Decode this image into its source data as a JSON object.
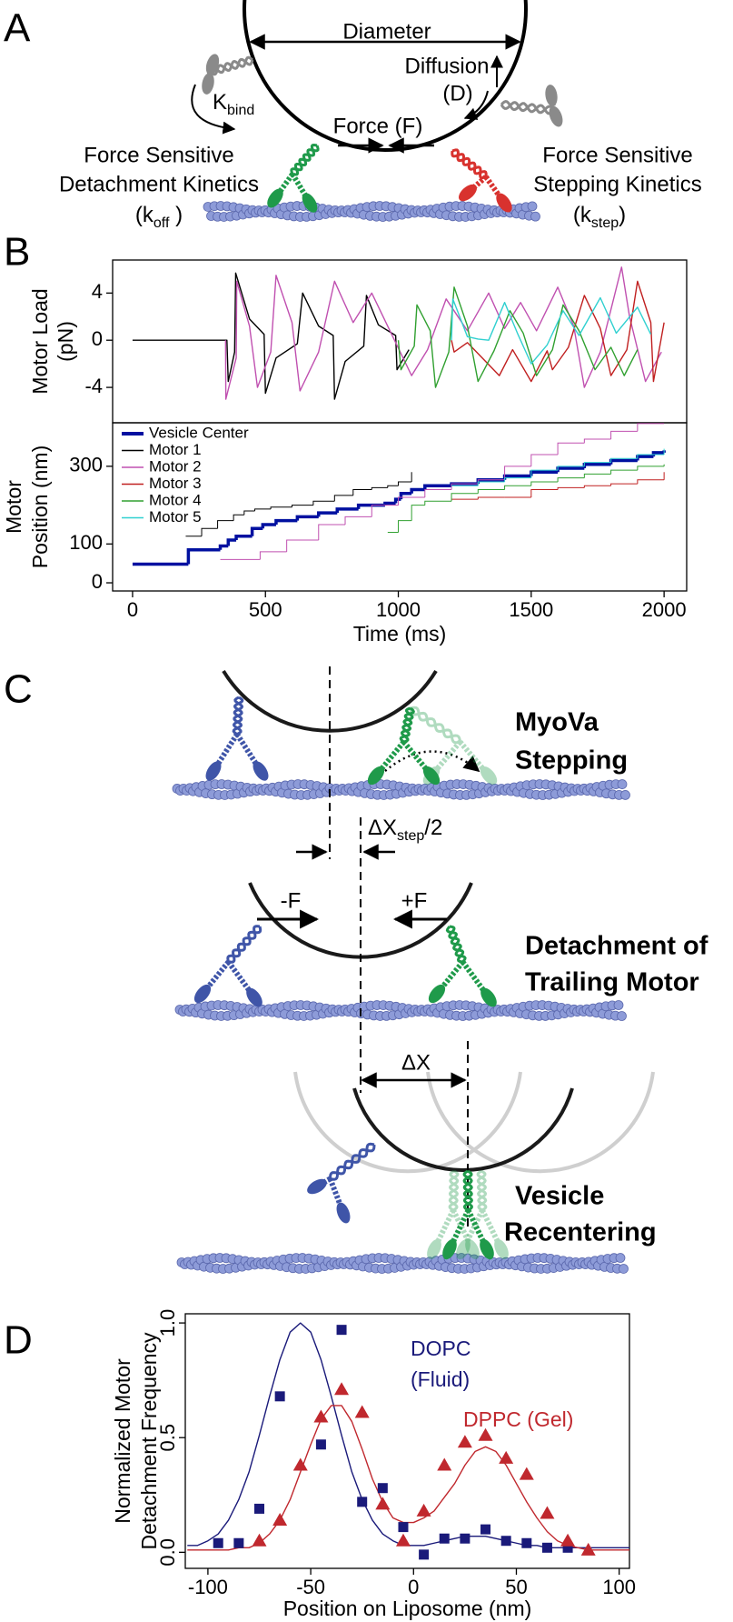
{
  "panel_labels": [
    "A",
    "B",
    "C",
    "D"
  ],
  "diagram_a": {
    "diameter": "Diameter",
    "diffusion": [
      "Diffusion",
      "(D)"
    ],
    "k_bind": {
      "main": "K",
      "sub": "bind"
    },
    "force": "Force (F)",
    "detachment": [
      "Force Sensitive",
      "Detachment Kinetics"
    ],
    "k_off": {
      "pre": "(k",
      "sub": "off",
      "post": " )"
    },
    "stepping": [
      "Force Sensitive",
      "Stepping Kinetics"
    ],
    "k_step": {
      "pre": "(k",
      "sub": "step",
      "post": ")"
    }
  },
  "diagram_c": {
    "stage1": [
      "MyoVa",
      "Stepping"
    ],
    "dx_step": {
      "pre": "ΔX",
      "sub": "step",
      "post": "/2"
    },
    "minus_f": "-F",
    "plus_f": "+F",
    "stage2": [
      "Detachment of",
      "Trailing Motor"
    ],
    "dx": "ΔX",
    "stage3": [
      "Vesicle",
      "Recentering"
    ]
  },
  "chart_data": [
    {
      "type": "line",
      "ylabel": [
        "Motor Load",
        "(pN)"
      ],
      "xlim": [
        -75,
        2085
      ],
      "ylim": [
        -7,
        6.8
      ],
      "yticks": [
        -4,
        0,
        4
      ],
      "series": [
        {
          "color": "#000000",
          "x": [
            0,
            355,
            360,
            384,
            388,
            440,
            495,
            500,
            540,
            620,
            640,
            700,
            755,
            760,
            800,
            870,
            880,
            925,
            990,
            995,
            1040
          ],
          "values": [
            0,
            0,
            -3.5,
            -1,
            5.7,
            1.8,
            0.5,
            -4.5,
            -1.5,
            -0.3,
            4,
            1.2,
            0.4,
            -5,
            -1.8,
            -0.5,
            3.8,
            1.3,
            0.4,
            -2.5,
            -0.8
          ]
        },
        {
          "color": "#c050b0",
          "x": [
            350,
            351,
            390,
            392,
            440,
            470,
            520,
            540,
            600,
            630,
            700,
            760,
            830,
            900,
            960,
            1050,
            1110,
            1180,
            1260,
            1340,
            1400,
            1460,
            1520,
            1600,
            1660,
            1700,
            1760,
            1840,
            1870,
            1930,
            1990
          ],
          "values": [
            0,
            -5,
            -1.5,
            5,
            1.2,
            -4,
            -1,
            5.5,
            1.5,
            -4.3,
            -1,
            5,
            1.5,
            4,
            1.2,
            -3,
            -0.8,
            3.5,
            0.8,
            4,
            1,
            3.2,
            0.8,
            4.5,
            1.2,
            -4,
            -1,
            6.2,
            2,
            -3.5,
            -1
          ]
        },
        {
          "color": "#c02020",
          "x": [
            1200,
            1210,
            1260,
            1380,
            1430,
            1500,
            1560,
            1580,
            1640,
            1700,
            1760,
            1800,
            1860,
            1900,
            1950,
            1960,
            2000
          ],
          "values": [
            0,
            -1,
            -0.2,
            -3,
            -0.8,
            -3.5,
            -0.9,
            -2.5,
            -0.6,
            3.8,
            1,
            -3,
            -0.8,
            5,
            1.5,
            -3.5,
            1.5
          ]
        },
        {
          "color": "#30a030",
          "x": [
            1000,
            1010,
            1060,
            1070,
            1120,
            1140,
            1190,
            1210,
            1260,
            1300,
            1360,
            1420,
            1470,
            1520,
            1580,
            1620,
            1680,
            1740,
            1800,
            1850,
            1900
          ],
          "values": [
            0,
            -2.5,
            -0.5,
            3,
            0.8,
            -4,
            -1,
            4.5,
            1.2,
            -3.5,
            -0.9,
            2.5,
            0.6,
            -3,
            -0.8,
            3,
            0.8,
            -2.5,
            -0.6,
            -3,
            -0.8
          ]
        },
        {
          "color": "#30d0d0",
          "x": [
            1200,
            1205,
            1260,
            1300,
            1340,
            1400,
            1450,
            1500,
            1560,
            1620,
            1680,
            1760,
            1820,
            1900,
            1950
          ],
          "values": [
            0,
            3.5,
            0.3,
            0.1,
            0,
            3.2,
            0.5,
            -2,
            -0.4,
            2.5,
            0.4,
            3.6,
            0.6,
            2.8,
            0.5
          ]
        }
      ]
    },
    {
      "type": "line",
      "step": true,
      "xlabel": "Time (ms)",
      "ylabel": [
        "Motor",
        "Position (nm)"
      ],
      "xlim": [
        -75,
        2085
      ],
      "ylim": [
        -21,
        412
      ],
      "xticks": [
        0,
        500,
        1000,
        1500,
        2000
      ],
      "yticks": [
        0,
        100,
        300
      ],
      "legend": "upper left",
      "series": [
        {
          "name": "Vesicle Center",
          "color": "#0010a0",
          "line_width": 3.5,
          "x": [
            0,
            210,
            330,
            360,
            390,
            450,
            490,
            540,
            620,
            700,
            770,
            850,
            950,
            990,
            1010,
            1050,
            1100,
            1200,
            1300,
            1400,
            1500,
            1600,
            1700,
            1800,
            1900,
            1960,
            2000
          ],
          "values": [
            48,
            85,
            95,
            110,
            120,
            140,
            150,
            160,
            170,
            180,
            190,
            200,
            205,
            215,
            230,
            240,
            250,
            255,
            265,
            275,
            285,
            295,
            305,
            315,
            325,
            335,
            341
          ]
        },
        {
          "name": "Motor 1",
          "color": "#000000",
          "line_width": 1,
          "x": [
            200,
            260,
            320,
            380,
            420,
            460,
            520,
            600,
            680,
            760,
            830,
            900,
            960,
            1000,
            1050
          ],
          "values": [
            120,
            140,
            160,
            175,
            185,
            190,
            195,
            200,
            210,
            225,
            240,
            245,
            250,
            260,
            285
          ]
        },
        {
          "name": "Motor 2",
          "color": "#c050b0",
          "line_width": 1,
          "x": [
            330,
            480,
            580,
            700,
            800,
            900,
            1000,
            1100,
            1200,
            1300,
            1400,
            1500,
            1600,
            1700,
            1800,
            1900,
            2000
          ],
          "values": [
            60,
            80,
            110,
            150,
            170,
            200,
            220,
            240,
            255,
            265,
            300,
            330,
            360,
            370,
            390,
            410,
            410
          ]
        },
        {
          "name": "Motor 3",
          "color": "#c02020",
          "line_width": 1,
          "x": [
            1200,
            1300,
            1400,
            1500,
            1600,
            1700,
            1800,
            1900,
            2000
          ],
          "values": [
            215,
            220,
            220,
            240,
            245,
            250,
            255,
            265,
            285
          ]
        },
        {
          "name": "Motor 4",
          "color": "#30a030",
          "line_width": 1,
          "x": [
            960,
            1000,
            1050,
            1100,
            1200,
            1300,
            1400,
            1500,
            1600,
            1700,
            1800,
            1900,
            2000
          ],
          "values": [
            130,
            160,
            200,
            210,
            230,
            240,
            250,
            260,
            270,
            280,
            290,
            300,
            305
          ]
        },
        {
          "name": "Motor 5",
          "color": "#30d0d0",
          "line_width": 1,
          "x": [
            1200,
            1300,
            1400,
            1500,
            1600,
            1700,
            1800,
            1900,
            2000
          ],
          "values": [
            250,
            260,
            270,
            290,
            300,
            310,
            320,
            330,
            345
          ]
        }
      ]
    },
    {
      "type": "scatter",
      "xlabel": "Position on Liposome (nm)",
      "ylabel": [
        "Normalized Motor",
        "Detachment Frequency"
      ],
      "xlim": [
        -111,
        105
      ],
      "ylim": [
        -0.07,
        1.04
      ],
      "xticks": [
        -100,
        -50,
        0,
        50,
        100
      ],
      "yticks": [
        {
          "value": 0,
          "label": "0.0"
        },
        0.5,
        {
          "value": 1,
          "label": "1.0"
        }
      ],
      "annotations": [
        {
          "text": [
            "DOPC",
            "(Fluid)"
          ],
          "color": "#1a1a7a"
        },
        {
          "text": [
            "DPPC (Gel)"
          ],
          "color": "#c0282e"
        }
      ],
      "series": [
        {
          "style": "line",
          "color": "#1a1a7a",
          "x": [
            -110,
            -105,
            -100,
            -95,
            -90,
            -85,
            -80,
            -75,
            -70,
            -65,
            -60,
            -55,
            -50,
            -45,
            -40,
            -35,
            -30,
            -25,
            -20,
            -15,
            -10,
            -5,
            0,
            5,
            10,
            15,
            20,
            25,
            30,
            35,
            40,
            45,
            50,
            55,
            60,
            65,
            70,
            75,
            80,
            85,
            90,
            95,
            100,
            105
          ],
          "values": [
            0.03,
            0.03,
            0.05,
            0.08,
            0.14,
            0.23,
            0.35,
            0.51,
            0.68,
            0.84,
            0.96,
            1.0,
            0.96,
            0.84,
            0.68,
            0.51,
            0.35,
            0.23,
            0.14,
            0.08,
            0.05,
            0.03,
            0.03,
            0.03,
            0.04,
            0.05,
            0.06,
            0.07,
            0.07,
            0.07,
            0.06,
            0.05,
            0.04,
            0.03,
            0.03,
            0.02,
            0.02,
            0.02,
            0.02,
            0.02,
            0.02,
            0.02,
            0.02,
            0.02
          ]
        },
        {
          "style": "line",
          "color": "#c0282e",
          "x": [
            -110,
            -105,
            -100,
            -95,
            -90,
            -85,
            -80,
            -75,
            -70,
            -65,
            -60,
            -55,
            -50,
            -45,
            -40,
            -35,
            -30,
            -25,
            -20,
            -15,
            -10,
            -5,
            0,
            5,
            10,
            15,
            20,
            25,
            30,
            35,
            40,
            45,
            50,
            55,
            60,
            65,
            70,
            75,
            80,
            85,
            90,
            95,
            100,
            105
          ],
          "values": [
            0.01,
            0.01,
            0.01,
            0.01,
            0.01,
            0.02,
            0.02,
            0.04,
            0.08,
            0.14,
            0.23,
            0.35,
            0.47,
            0.58,
            0.64,
            0.64,
            0.57,
            0.45,
            0.32,
            0.22,
            0.15,
            0.13,
            0.13,
            0.15,
            0.18,
            0.24,
            0.3,
            0.38,
            0.44,
            0.46,
            0.44,
            0.38,
            0.3,
            0.22,
            0.15,
            0.09,
            0.05,
            0.03,
            0.02,
            0.01,
            0.01,
            0.01,
            0.01,
            0.01
          ]
        },
        {
          "style": "square",
          "color": "#1a1a7a",
          "x": [
            -95,
            -85,
            -75,
            -65,
            -45,
            -35,
            -25,
            -15,
            -5,
            5,
            15,
            25,
            35,
            45,
            55,
            65,
            75
          ],
          "values": [
            0.04,
            0.04,
            0.19,
            0.68,
            0.47,
            0.97,
            0.22,
            0.28,
            0.11,
            -0.01,
            0.06,
            0.06,
            0.1,
            0.05,
            0.04,
            0.02,
            0.02
          ]
        },
        {
          "style": "triangle",
          "color": "#c0282e",
          "x": [
            -75,
            -65,
            -55,
            -45,
            -35,
            -25,
            -15,
            -5,
            5,
            15,
            25,
            35,
            45,
            55,
            65,
            75,
            85
          ],
          "values": [
            0.05,
            0.14,
            0.38,
            0.59,
            0.71,
            0.61,
            0.21,
            0.05,
            0.18,
            0.38,
            0.48,
            0.51,
            0.41,
            0.34,
            0.17,
            0.05,
            0.01
          ]
        }
      ]
    }
  ]
}
